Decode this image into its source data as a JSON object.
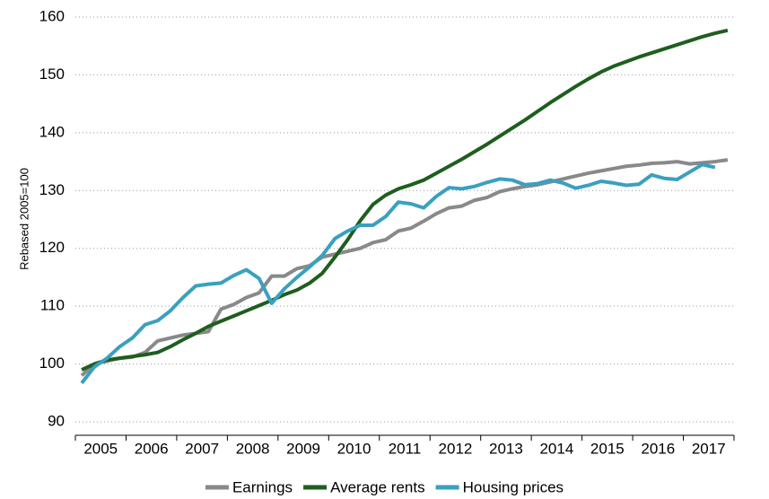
{
  "chart_data": {
    "type": "line",
    "y_label": "Rebased 2005=100",
    "x": [
      2005.125,
      2005.375,
      2005.625,
      2005.875,
      2006.125,
      2006.375,
      2006.625,
      2006.875,
      2007.125,
      2007.375,
      2007.625,
      2007.875,
      2008.125,
      2008.375,
      2008.625,
      2008.875,
      2009.125,
      2009.375,
      2009.625,
      2009.875,
      2010.125,
      2010.375,
      2010.625,
      2010.875,
      2011.125,
      2011.375,
      2011.625,
      2011.875,
      2012.125,
      2012.375,
      2012.625,
      2012.875,
      2013.125,
      2013.375,
      2013.625,
      2013.875,
      2014.125,
      2014.375,
      2014.625,
      2014.875,
      2015.125,
      2015.375,
      2015.625,
      2015.875,
      2016.125,
      2016.375,
      2016.625,
      2016.875,
      2017.125,
      2017.375,
      2017.625,
      2017.875
    ],
    "series": [
      {
        "name": "Earnings",
        "color": "#898989",
        "values": [
          98,
          100,
          100.5,
          101,
          101.2,
          102,
          104,
          104.5,
          105,
          105.3,
          105.6,
          109.5,
          110.3,
          111.5,
          112.3,
          115.2,
          115.2,
          116.5,
          117,
          118.5,
          119,
          119.5,
          120,
          121,
          121.5,
          123,
          123.5,
          124.7,
          126,
          127,
          127.3,
          128.3,
          128.8,
          129.8,
          130.3,
          130.7,
          131,
          131.5,
          132,
          132.5,
          133,
          133.4,
          133.8,
          134.2,
          134.4,
          134.7,
          134.8,
          135,
          134.6,
          134.8,
          135,
          135.3
        ]
      },
      {
        "name": "Average rents",
        "color": "#1e5e1e",
        "values": [
          99,
          100,
          100.7,
          101,
          101.3,
          101.6,
          102,
          103,
          104.2,
          105.3,
          106.5,
          107.4,
          108.3,
          109.2,
          110.1,
          111,
          112,
          112.8,
          114,
          115.7,
          118.5,
          121.5,
          124.8,
          127.6,
          129.2,
          130.3,
          131,
          131.8,
          133,
          134.2,
          135.4,
          136.7,
          138,
          139.4,
          140.8,
          142.2,
          143.7,
          145.2,
          146.6,
          148,
          149.3,
          150.5,
          151.5,
          152.3,
          153.1,
          153.8,
          154.5,
          155.2,
          155.9,
          156.6,
          157.2,
          157.7
        ]
      },
      {
        "name": "Housing prices",
        "color": "#3aa0c0",
        "values": [
          96.7,
          99.5,
          101,
          103,
          104.5,
          106.8,
          107.5,
          109.2,
          111.5,
          113.5,
          113.8,
          114,
          115.3,
          116.3,
          114.8,
          110.5,
          113,
          115,
          116.8,
          118.8,
          121.7,
          123,
          124,
          124,
          125.5,
          128,
          127.7,
          127,
          129,
          130.5,
          130.3,
          130.7,
          131.4,
          132,
          131.8,
          131,
          131.2,
          131.8,
          131.3,
          130.4,
          130.9,
          131.6,
          131.3,
          130.9,
          131.1,
          132.7,
          132.1,
          131.9,
          133.2,
          134.5,
          134,
          null
        ]
      }
    ],
    "xlim": [
      2005,
      2018
    ],
    "xtick_marks": [
      2005,
      2006,
      2007,
      2008,
      2009,
      2010,
      2011,
      2012,
      2013,
      2014,
      2015,
      2016,
      2017,
      2018
    ],
    "xticks": [
      {
        "value": 2005.5,
        "label": "2005"
      },
      {
        "value": 2006.5,
        "label": "2006"
      },
      {
        "value": 2007.5,
        "label": "2007"
      },
      {
        "value": 2008.5,
        "label": "2008"
      },
      {
        "value": 2009.5,
        "label": "2009"
      },
      {
        "value": 2010.5,
        "label": "2010"
      },
      {
        "value": 2011.5,
        "label": "2011"
      },
      {
        "value": 2012.5,
        "label": "2012"
      },
      {
        "value": 2013.5,
        "label": "2013"
      },
      {
        "value": 2014.5,
        "label": "2014"
      },
      {
        "value": 2015.5,
        "label": "2015"
      },
      {
        "value": 2016.5,
        "label": "2016"
      },
      {
        "value": 2017.5,
        "label": "2017"
      }
    ],
    "ylim": [
      90,
      160
    ],
    "yticks": [
      90,
      100,
      110,
      120,
      130,
      140,
      150,
      160
    ],
    "grid": true,
    "legend": "bottom"
  }
}
